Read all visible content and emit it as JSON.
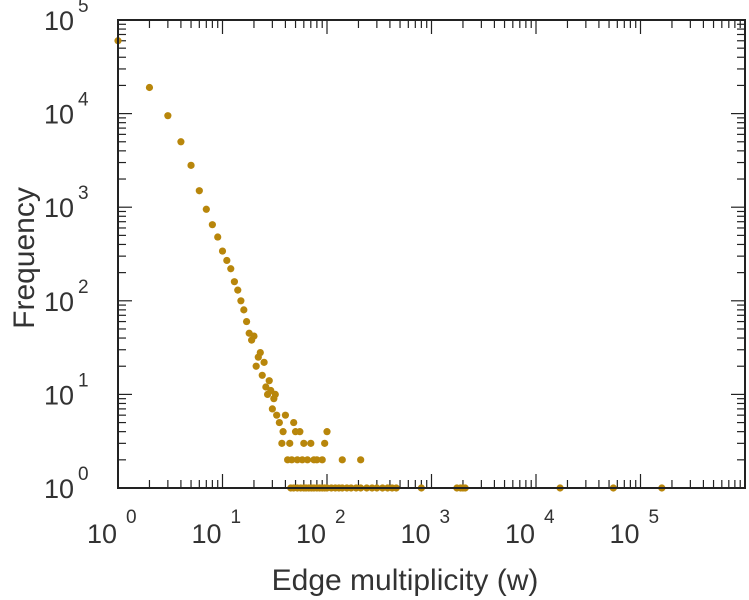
{
  "chart_data": {
    "type": "scatter",
    "title": "",
    "xlabel": "Edge multiplicity (w)",
    "ylabel": "Frequency",
    "x_scale": "log",
    "y_scale": "log",
    "xlim": [
      1,
      1000000
    ],
    "ylim": [
      1,
      100000
    ],
    "x_ticks": [
      {
        "base": "10",
        "exp": "0",
        "value": 1
      },
      {
        "base": "10",
        "exp": "1",
        "value": 10
      },
      {
        "base": "10",
        "exp": "2",
        "value": 100
      },
      {
        "base": "10",
        "exp": "3",
        "value": 1000
      },
      {
        "base": "10",
        "exp": "4",
        "value": 10000
      },
      {
        "base": "10",
        "exp": "5",
        "value": 100000
      }
    ],
    "y_ticks": [
      {
        "base": "10",
        "exp": "0",
        "value": 1
      },
      {
        "base": "10",
        "exp": "1",
        "value": 10
      },
      {
        "base": "10",
        "exp": "2",
        "value": 100
      },
      {
        "base": "10",
        "exp": "3",
        "value": 1000
      },
      {
        "base": "10",
        "exp": "4",
        "value": 10000
      },
      {
        "base": "10",
        "exp": "5",
        "value": 100000
      }
    ],
    "grid": false,
    "marker_color": "#b8860b",
    "points": [
      [
        1,
        60000
      ],
      [
        2,
        19000
      ],
      [
        3,
        9500
      ],
      [
        4,
        5000
      ],
      [
        5,
        2800
      ],
      [
        6,
        1500
      ],
      [
        7,
        950
      ],
      [
        8,
        650
      ],
      [
        9,
        480
      ],
      [
        10,
        340
      ],
      [
        11,
        270
      ],
      [
        12,
        220
      ],
      [
        13,
        160
      ],
      [
        14,
        130
      ],
      [
        15,
        100
      ],
      [
        16,
        80
      ],
      [
        17,
        60
      ],
      [
        18,
        45
      ],
      [
        19,
        38
      ],
      [
        20,
        42
      ],
      [
        21,
        20
      ],
      [
        22,
        25
      ],
      [
        23,
        28
      ],
      [
        24,
        16
      ],
      [
        25,
        22
      ],
      [
        26,
        12
      ],
      [
        27,
        10
      ],
      [
        28,
        14
      ],
      [
        29,
        11
      ],
      [
        30,
        7
      ],
      [
        31,
        9
      ],
      [
        32,
        10
      ],
      [
        33,
        6
      ],
      [
        35,
        5
      ],
      [
        37,
        3
      ],
      [
        38,
        4
      ],
      [
        40,
        6
      ],
      [
        42,
        2
      ],
      [
        44,
        3
      ],
      [
        46,
        2
      ],
      [
        48,
        5
      ],
      [
        50,
        4
      ],
      [
        52,
        2
      ],
      [
        55,
        4
      ],
      [
        58,
        2
      ],
      [
        60,
        3
      ],
      [
        65,
        2
      ],
      [
        70,
        3
      ],
      [
        75,
        2
      ],
      [
        80,
        2
      ],
      [
        90,
        2
      ],
      [
        95,
        3
      ],
      [
        100,
        4
      ],
      [
        140,
        2
      ],
      [
        210,
        2
      ],
      [
        45,
        1
      ],
      [
        48,
        1
      ],
      [
        52,
        1
      ],
      [
        56,
        1
      ],
      [
        60,
        1
      ],
      [
        63,
        1
      ],
      [
        67,
        1
      ],
      [
        71,
        1
      ],
      [
        75,
        1
      ],
      [
        80,
        1
      ],
      [
        85,
        1
      ],
      [
        90,
        1
      ],
      [
        95,
        1
      ],
      [
        100,
        1
      ],
      [
        110,
        1
      ],
      [
        120,
        1
      ],
      [
        130,
        1
      ],
      [
        140,
        1
      ],
      [
        155,
        1
      ],
      [
        170,
        1
      ],
      [
        190,
        1
      ],
      [
        210,
        1
      ],
      [
        240,
        1
      ],
      [
        270,
        1
      ],
      [
        300,
        1
      ],
      [
        340,
        1
      ],
      [
        380,
        1
      ],
      [
        420,
        1
      ],
      [
        460,
        1
      ],
      [
        800,
        1
      ],
      [
        1750,
        1
      ],
      [
        1900,
        1
      ],
      [
        2000,
        1
      ],
      [
        2100,
        1
      ],
      [
        17000,
        1
      ],
      [
        55000,
        1
      ],
      [
        160000,
        1
      ]
    ]
  }
}
